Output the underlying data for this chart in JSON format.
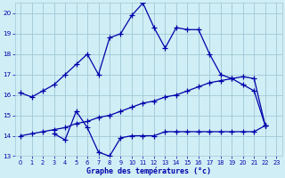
{
  "title": "Graphe des températures (°c)",
  "bg_color": "#d0eef5",
  "grid_color": "#a0c8d8",
  "line_color": "#0000aa",
  "xlim": [
    -0.5,
    23.5
  ],
  "ylim": [
    13,
    20.5
  ],
  "xticks": [
    0,
    1,
    2,
    3,
    4,
    5,
    6,
    7,
    8,
    9,
    10,
    11,
    12,
    13,
    14,
    15,
    16,
    17,
    18,
    19,
    20,
    21,
    22,
    23
  ],
  "yticks": [
    13,
    14,
    15,
    16,
    17,
    18,
    19,
    20
  ],
  "curve1_x": [
    0,
    1,
    2,
    3,
    4,
    5,
    6,
    7,
    8,
    9,
    10,
    11,
    12,
    13,
    14,
    15,
    16,
    17,
    18,
    19,
    20,
    21,
    22
  ],
  "curve1_y": [
    16.1,
    15.9,
    16.2,
    16.5,
    17.0,
    17.5,
    18.0,
    17.0,
    18.8,
    19.0,
    19.9,
    20.5,
    19.3,
    18.3,
    19.3,
    19.2,
    19.2,
    18.0,
    17.0,
    16.8,
    16.5,
    16.2,
    14.5
  ],
  "curve2_x": [
    3,
    4,
    5,
    6,
    7,
    8,
    9,
    10,
    11,
    12,
    13,
    14,
    15,
    16,
    17,
    18,
    19,
    20,
    21,
    22
  ],
  "curve2_y": [
    14.1,
    13.8,
    15.2,
    14.4,
    13.2,
    13.0,
    13.9,
    14.0,
    14.0,
    14.0,
    14.2,
    14.2,
    14.2,
    14.2,
    14.2,
    14.2,
    14.2,
    14.2,
    14.2,
    14.5
  ],
  "curve3_x": [
    0,
    1,
    2,
    3,
    4,
    5,
    6,
    7,
    8,
    9,
    10,
    11,
    12,
    13,
    14,
    15,
    16,
    17,
    18,
    19,
    20,
    21,
    22
  ],
  "curve3_y": [
    14.0,
    14.1,
    14.2,
    14.3,
    14.4,
    14.6,
    14.7,
    14.9,
    15.0,
    15.2,
    15.4,
    15.6,
    15.7,
    15.9,
    16.0,
    16.2,
    16.4,
    16.6,
    16.7,
    16.8,
    16.9,
    16.8,
    14.5
  ]
}
